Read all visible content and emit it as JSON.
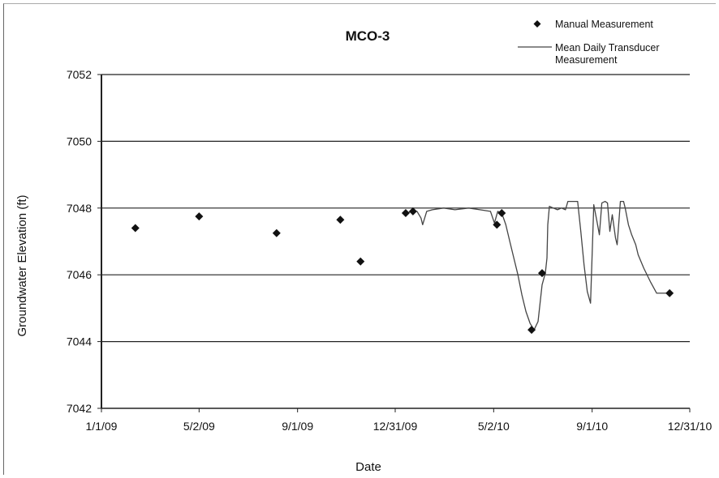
{
  "chart_data": {
    "type": "scatter",
    "title": "MCO-3",
    "xlabel": "Date",
    "ylabel": "Groundwater Elevation (ft)",
    "xlim": [
      "2009-01-01",
      "2010-12-31"
    ],
    "ylim": [
      7042,
      7052
    ],
    "x_tick_labels": [
      "1/1/09",
      "5/2/09",
      "9/1/09",
      "12/31/09",
      "5/2/10",
      "9/1/10",
      "12/31/10"
    ],
    "x_ticks": [
      "2009-01-01",
      "2009-05-02",
      "2009-09-01",
      "2009-12-31",
      "2010-05-02",
      "2010-09-01",
      "2010-12-31"
    ],
    "y_ticks": [
      7042,
      7044,
      7046,
      7048,
      7050,
      7052
    ],
    "y_tick_labels": [
      "7042",
      "7044",
      "7046",
      "7048",
      "7050",
      "7052"
    ],
    "grid": "horizontal",
    "legend_position": "top-right",
    "series": [
      {
        "name": "Manual Measurement",
        "marker": "diamond",
        "color": "#111111",
        "x": [
          "2009-02-12",
          "2009-05-02",
          "2009-08-06",
          "2009-10-24",
          "2009-11-18",
          "2010-01-13",
          "2010-01-22",
          "2010-05-06",
          "2010-05-12",
          "2010-06-18",
          "2010-07-01",
          "2010-12-06"
        ],
        "y": [
          7047.4,
          7047.75,
          7047.25,
          7047.65,
          7046.4,
          7047.85,
          7047.9,
          7047.5,
          7047.85,
          7044.35,
          7046.05,
          7045.45
        ]
      },
      {
        "name": "Mean Daily Transducer Measurement",
        "line": "solid",
        "color": "#444444",
        "x": [
          "2010-01-13",
          "2010-01-22",
          "2010-01-27",
          "2010-02-01",
          "2010-02-03",
          "2010-02-08",
          "2010-02-15",
          "2010-03-01",
          "2010-03-15",
          "2010-04-01",
          "2010-04-15",
          "2010-04-28",
          "2010-05-03",
          "2010-05-07",
          "2010-05-12",
          "2010-05-17",
          "2010-05-22",
          "2010-05-27",
          "2010-06-01",
          "2010-06-06",
          "2010-06-11",
          "2010-06-16",
          "2010-06-21",
          "2010-06-26",
          "2010-07-01",
          "2010-07-05",
          "2010-07-07",
          "2010-07-08",
          "2010-07-10",
          "2010-07-15",
          "2010-07-20",
          "2010-07-25",
          "2010-07-30",
          "2010-08-02",
          "2010-08-06",
          "2010-08-10",
          "2010-08-14",
          "2010-08-18",
          "2010-08-22",
          "2010-08-26",
          "2010-08-30",
          "2010-09-03",
          "2010-09-07",
          "2010-09-10",
          "2010-09-13",
          "2010-09-17",
          "2010-09-20",
          "2010-09-23",
          "2010-09-26",
          "2010-09-30",
          "2010-10-02",
          "2010-10-06",
          "2010-10-10",
          "2010-10-12",
          "2010-10-16",
          "2010-10-20",
          "2010-10-25",
          "2010-10-28",
          "2010-11-04",
          "2010-11-12",
          "2010-11-20",
          "2010-11-28",
          "2010-12-06"
        ],
        "y": [
          7047.85,
          7047.9,
          7047.9,
          7047.7,
          7047.5,
          7047.9,
          7047.95,
          7048.0,
          7047.95,
          7048.0,
          7047.95,
          7047.9,
          7047.55,
          7047.9,
          7047.85,
          7047.5,
          7047.0,
          7046.5,
          7046.0,
          7045.4,
          7044.9,
          7044.55,
          7044.35,
          7044.6,
          7045.7,
          7046.05,
          7046.5,
          7047.5,
          7048.05,
          7048.0,
          7047.95,
          7048.0,
          7047.95,
          7048.2,
          7048.2,
          7048.2,
          7048.2,
          7047.3,
          7046.3,
          7045.5,
          7045.15,
          7048.1,
          7047.6,
          7047.2,
          7048.15,
          7048.2,
          7048.15,
          7047.3,
          7047.8,
          7047.1,
          7046.9,
          7048.2,
          7048.2,
          7048.0,
          7047.5,
          7047.2,
          7046.9,
          7046.6,
          7046.2,
          7045.8,
          7045.45,
          7045.45,
          7045.45
        ]
      }
    ]
  }
}
